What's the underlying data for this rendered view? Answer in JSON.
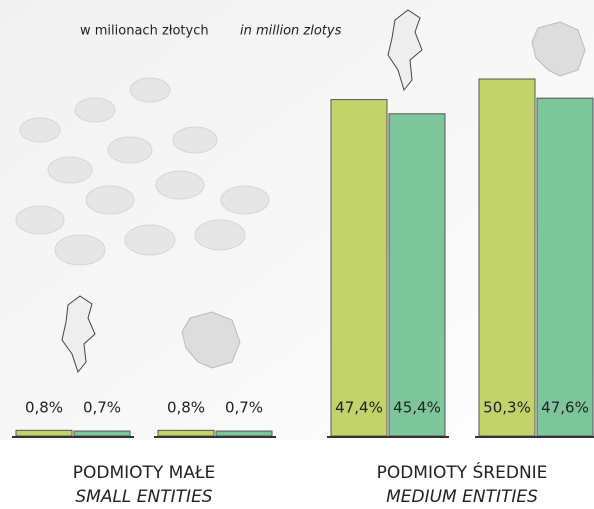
{
  "chart_data": {
    "type": "bar",
    "subtitle": "w milionach złotych",
    "subtitle_en": "in million zlotys",
    "categories": [
      null,
      null,
      null,
      null
    ],
    "groups": [
      {
        "name": "PODMIOTY MAŁE",
        "name_en": "SMALL ENTITIES"
      },
      {
        "name": "PODMIOTY ŚREDNIE",
        "name_en": "MEDIUM ENTITIES"
      }
    ],
    "series": [
      {
        "color": "#c3d36b",
        "values": [
          0.8,
          0.8,
          47.4,
          50.3
        ],
        "value_labels": [
          "0,8%",
          "0,8%",
          "47,4%",
          "50,3%"
        ]
      },
      {
        "color": "#7dc59b",
        "values": [
          0.7,
          0.7,
          45.4,
          47.6
        ],
        "value_labels": [
          "0,7%",
          "0,7%",
          "45,4%",
          "47,6%"
        ]
      }
    ]
  }
}
